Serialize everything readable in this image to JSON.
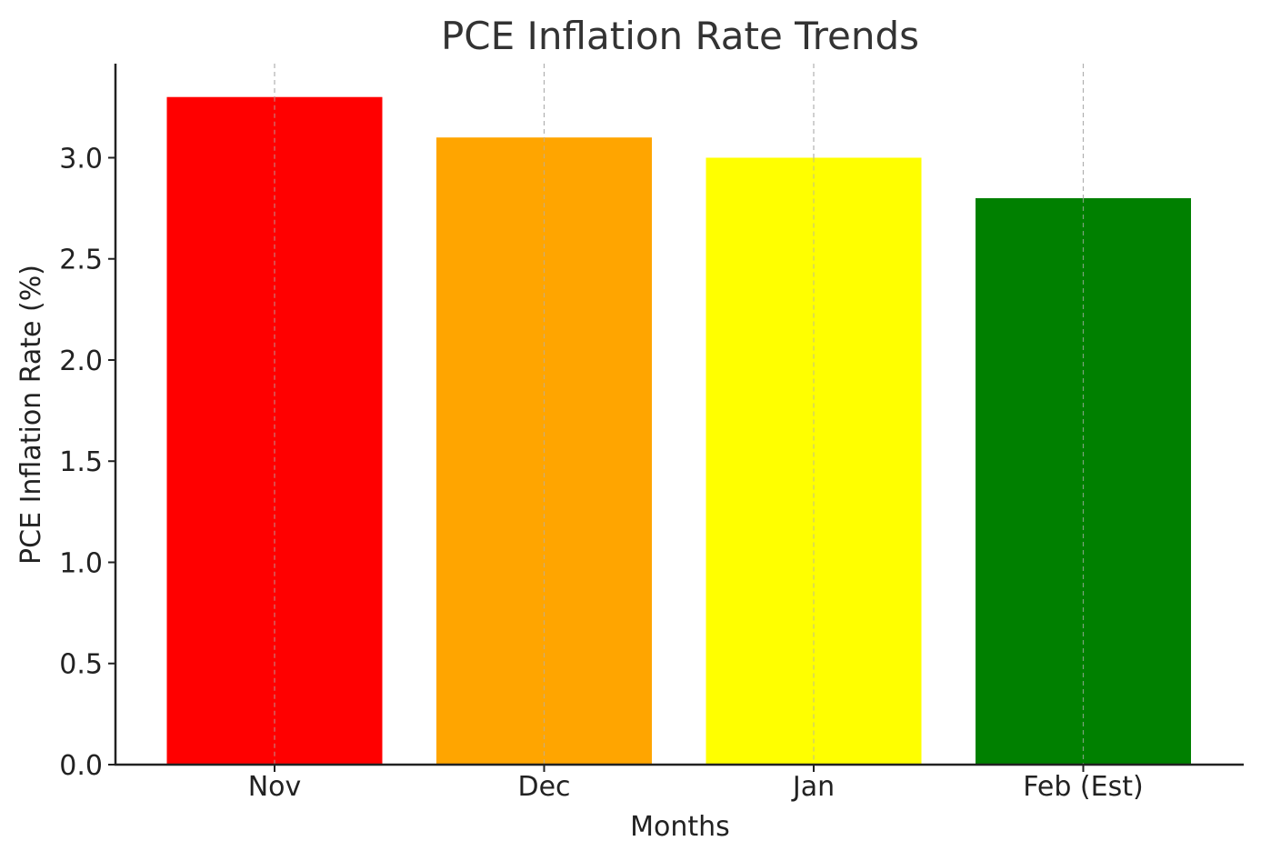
{
  "chart_data": {
    "type": "bar",
    "title": "PCE Inflation Rate Trends",
    "xlabel": "Months",
    "ylabel": "PCE Inflation Rate (%)",
    "categories": [
      "Nov",
      "Dec",
      "Jan",
      "Feb (Est)"
    ],
    "values": [
      3.3,
      3.1,
      3.0,
      2.8
    ],
    "colors": [
      "#ff0000",
      "#ffa500",
      "#ffff00",
      "#008000"
    ],
    "ylim": [
      0,
      3.465
    ],
    "yticks": [
      0.0,
      0.5,
      1.0,
      1.5,
      2.0,
      2.5,
      3.0
    ],
    "ytick_labels": [
      "0.0",
      "0.5",
      "1.0",
      "1.5",
      "2.0",
      "2.5",
      "3.0"
    ],
    "grid": "vertical dashed at category centers",
    "legend": "none"
  }
}
